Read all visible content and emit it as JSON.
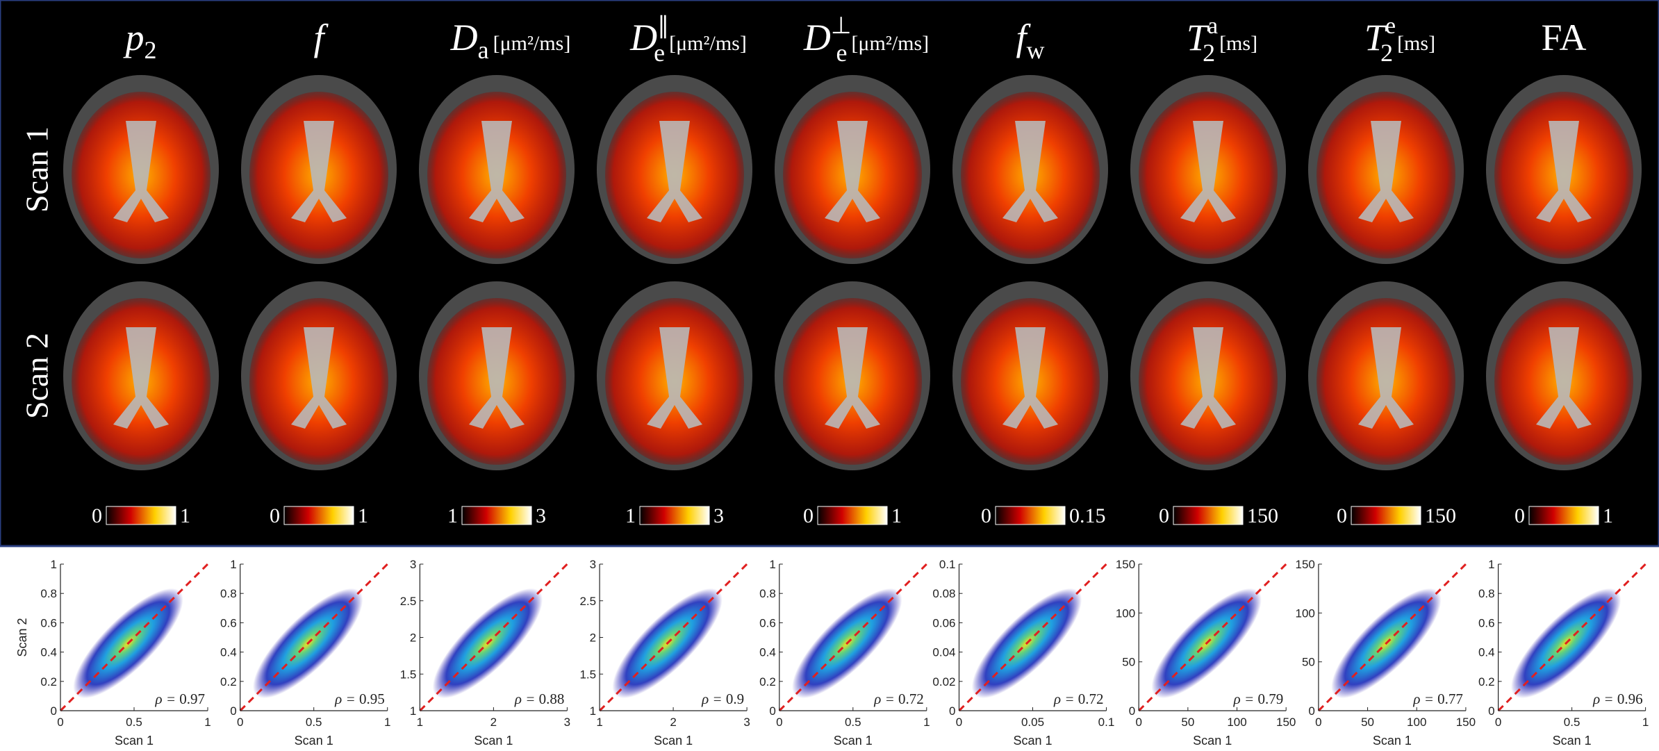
{
  "rows": [
    "Scan 1",
    "Scan 2"
  ],
  "columns": [
    {
      "title": {
        "main": "p",
        "sub": "2"
      },
      "colorbar": [
        0,
        1
      ]
    },
    {
      "title": {
        "main": "f"
      },
      "colorbar": [
        0,
        1
      ]
    },
    {
      "title": {
        "main": "D",
        "sub": "a",
        "unit": "[μm²/ms]"
      },
      "colorbar": [
        1,
        3
      ]
    },
    {
      "title": {
        "main": "D",
        "sub": "e",
        "sup": "∥",
        "unit": "[μm²/ms]"
      },
      "colorbar": [
        1,
        3
      ]
    },
    {
      "title": {
        "main": "D",
        "sub": "e",
        "sup": "⊥",
        "unit": "[μm²/ms]"
      },
      "colorbar": [
        0,
        1
      ]
    },
    {
      "title": {
        "main": "f",
        "sub": "w"
      },
      "colorbar": [
        0,
        0.15
      ]
    },
    {
      "title": {
        "main": "T",
        "sub": "2",
        "sup": "a",
        "unit": "[ms]"
      },
      "colorbar": [
        0,
        150
      ]
    },
    {
      "title": {
        "main": "T",
        "sub": "2",
        "sup": "e",
        "unit": "[ms]"
      },
      "colorbar": [
        0,
        150
      ]
    },
    {
      "title": {
        "main": "FA"
      },
      "colorbar": [
        0,
        1
      ]
    }
  ],
  "rho_prefix": "ρ = ",
  "chart_data": [
    {
      "type": "scatter",
      "xlim": [
        0,
        1
      ],
      "ylim": [
        0,
        1
      ],
      "xticks": [
        0,
        0.5,
        1
      ],
      "yticks": [
        0,
        0.2,
        0.4,
        0.6,
        0.8,
        1
      ],
      "xlabel": "Scan 1",
      "ylabel": "Scan 2",
      "rho": 0.97
    },
    {
      "type": "scatter",
      "xlim": [
        0,
        1
      ],
      "ylim": [
        0,
        1
      ],
      "xticks": [
        0,
        0.5,
        1
      ],
      "yticks": [
        0,
        0.2,
        0.4,
        0.6,
        0.8,
        1
      ],
      "xlabel": "Scan 1",
      "rho": 0.95
    },
    {
      "type": "scatter",
      "xlim": [
        1,
        3
      ],
      "ylim": [
        1,
        3
      ],
      "xticks": [
        1,
        2,
        3
      ],
      "yticks": [
        1,
        1.5,
        2,
        2.5,
        3
      ],
      "xlabel": "Scan 1",
      "rho": 0.88
    },
    {
      "type": "scatter",
      "xlim": [
        1,
        3
      ],
      "ylim": [
        1,
        3
      ],
      "xticks": [
        1,
        2,
        3
      ],
      "yticks": [
        1,
        1.5,
        2,
        2.5,
        3
      ],
      "xlabel": "Scan 1",
      "rho": 0.9
    },
    {
      "type": "scatter",
      "xlim": [
        0,
        1
      ],
      "ylim": [
        0,
        1
      ],
      "xticks": [
        0,
        0.5,
        1
      ],
      "yticks": [
        0,
        0.2,
        0.4,
        0.6,
        0.8,
        1
      ],
      "xlabel": "Scan 1",
      "rho": 0.72
    },
    {
      "type": "scatter",
      "xlim": [
        0,
        0.1
      ],
      "ylim": [
        0,
        0.1
      ],
      "xticks": [
        0,
        0.05,
        0.1
      ],
      "yticks": [
        0,
        0.02,
        0.04,
        0.06,
        0.08,
        0.1
      ],
      "xlabel": "Scan 1",
      "rho": 0.72
    },
    {
      "type": "scatter",
      "xlim": [
        0,
        150
      ],
      "ylim": [
        0,
        150
      ],
      "xticks": [
        0,
        50,
        100,
        150
      ],
      "yticks": [
        0,
        50,
        100,
        150
      ],
      "xlabel": "Scan 1",
      "rho": 0.79
    },
    {
      "type": "scatter",
      "xlim": [
        0,
        150
      ],
      "ylim": [
        0,
        150
      ],
      "xticks": [
        0,
        50,
        100,
        150
      ],
      "yticks": [
        0,
        50,
        100,
        150
      ],
      "xlabel": "Scan 1",
      "rho": 0.77
    },
    {
      "type": "scatter",
      "xlim": [
        0,
        1
      ],
      "ylim": [
        0,
        1
      ],
      "xticks": [
        0,
        0.5,
        1
      ],
      "yticks": [
        0,
        0.2,
        0.4,
        0.6,
        0.8,
        1
      ],
      "xlabel": "Scan 1",
      "rho": 0.96
    }
  ]
}
